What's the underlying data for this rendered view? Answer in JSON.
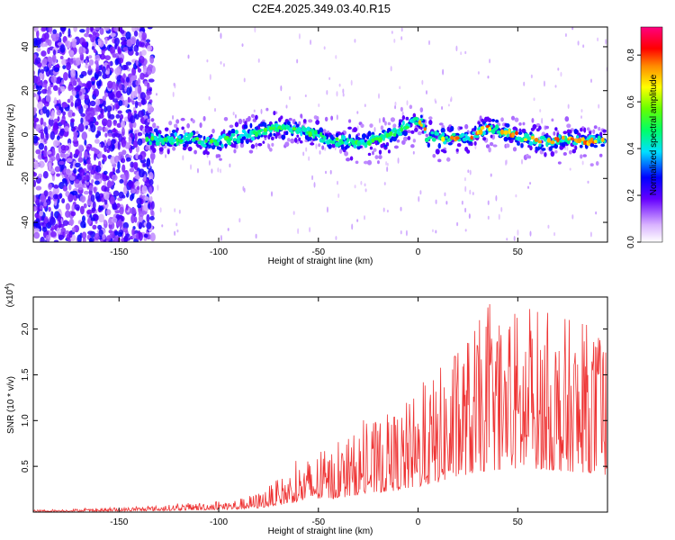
{
  "title": "C2E4.2025.349.03.40.R15",
  "chart_data": [
    {
      "type": "heatmap",
      "xlabel": "Height of straight line (km)",
      "ylabel": "Frequency (Hz)",
      "xlim": [
        -193,
        95
      ],
      "ylim": [
        -49,
        49
      ],
      "xticks": [
        -150,
        -100,
        -50,
        0,
        50
      ],
      "yticks": [
        -40,
        -20,
        0,
        20,
        40
      ],
      "colorbar": {
        "label": "Normalized spectral amplitude",
        "range": [
          0.0,
          0.92
        ],
        "ticks": [
          0.0,
          0.2,
          0.4,
          0.6,
          0.8
        ],
        "tick_labels": [
          "0.0",
          "0.2",
          "0.4",
          "0.6",
          "0.8"
        ]
      },
      "ridge_centerline": {
        "x": [
          -135,
          -125,
          -115,
          -105,
          -95,
          -85,
          -75,
          -65,
          -55,
          -45,
          -35,
          -25,
          -15,
          -5,
          0,
          5,
          15,
          25,
          35,
          45,
          55,
          65,
          75,
          85,
          93
        ],
        "y": [
          -2,
          -3,
          -1,
          -4,
          -2,
          0,
          2,
          3,
          1,
          -2,
          -4,
          -3,
          -1,
          4,
          8,
          -1,
          -2,
          -1,
          3,
          1,
          -2,
          -3,
          -2,
          -3,
          -2
        ]
      }
    },
    {
      "type": "line",
      "xlabel": "Height of straight line (km)",
      "ylabel": "SNR (10 * v/v)",
      "yscale_label": "(x10",
      "yscale_exp": "4",
      "yscale_close": ")",
      "xlim": [
        -193,
        95
      ],
      "ylim": [
        0,
        2.35
      ],
      "xticks": [
        -150,
        -100,
        -50,
        0,
        50
      ],
      "yticks": [
        0.5,
        1.0,
        1.5,
        2.0
      ],
      "ytick_labels": [
        "0.5",
        "1.0",
        "1.5",
        "2.0"
      ],
      "series": [
        {
          "color": "#ee3333",
          "envelope_x": [
            -193,
            -150,
            -130,
            -110,
            -90,
            -80,
            -70,
            -60,
            -50,
            -40,
            -30,
            -20,
            -10,
            0,
            10,
            20,
            30,
            40,
            50,
            60,
            70,
            80,
            90,
            95
          ],
          "envelope_y": [
            0.02,
            0.04,
            0.06,
            0.09,
            0.12,
            0.18,
            0.3,
            0.45,
            0.55,
            0.6,
            0.75,
            0.85,
            0.95,
            1.1,
            1.3,
            1.55,
            1.75,
            1.85,
            1.9,
            1.9,
            1.8,
            1.75,
            1.7,
            1.6
          ]
        }
      ]
    }
  ]
}
